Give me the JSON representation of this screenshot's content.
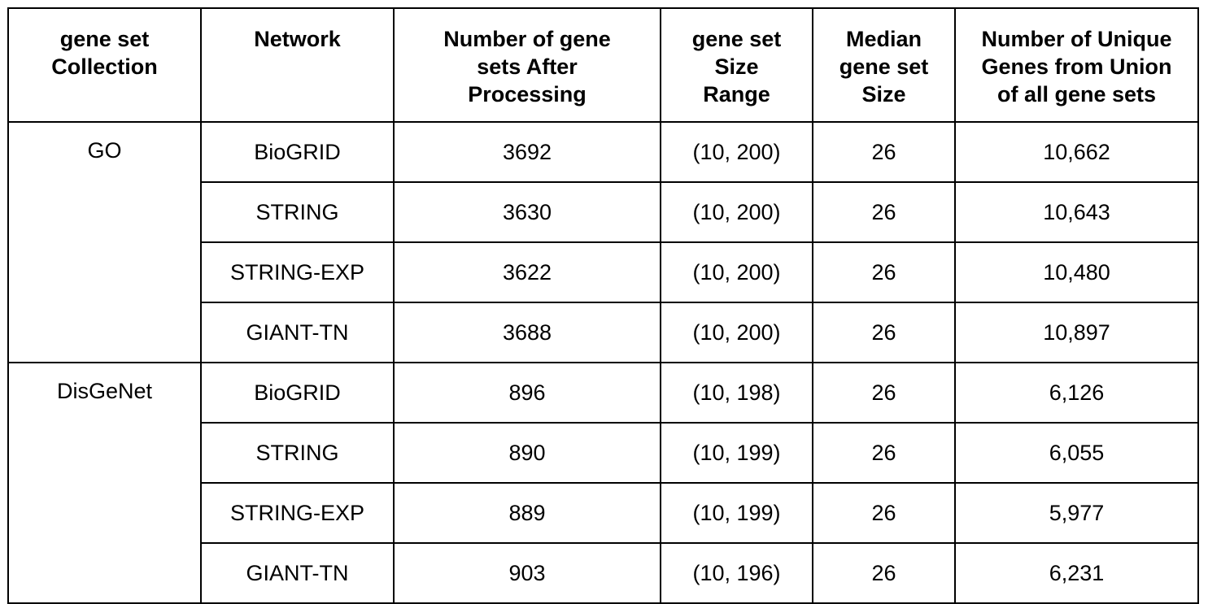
{
  "table": {
    "headers": [
      "gene set\nCollection",
      "Network",
      "Number of gene\nsets After\nProcessing",
      "gene set\nSize\nRange",
      "Median\ngene set\nSize",
      "Number of Unique\nGenes from Union\nof all gene sets"
    ],
    "groups": [
      {
        "collection": "GO",
        "rows": [
          {
            "network": "BioGRID",
            "num_sets": "3692",
            "size_range": "(10, 200)",
            "median": "26",
            "unique_genes": "10,662"
          },
          {
            "network": "STRING",
            "num_sets": "3630",
            "size_range": "(10, 200)",
            "median": "26",
            "unique_genes": "10,643"
          },
          {
            "network": "STRING-EXP",
            "num_sets": "3622",
            "size_range": "(10, 200)",
            "median": "26",
            "unique_genes": "10,480"
          },
          {
            "network": "GIANT-TN",
            "num_sets": "3688",
            "size_range": "(10, 200)",
            "median": "26",
            "unique_genes": "10,897"
          }
        ]
      },
      {
        "collection": "DisGeNet",
        "rows": [
          {
            "network": "BioGRID",
            "num_sets": "896",
            "size_range": "(10, 198)",
            "median": "26",
            "unique_genes": "6,126"
          },
          {
            "network": "STRING",
            "num_sets": "890",
            "size_range": "(10, 199)",
            "median": "26",
            "unique_genes": "6,055"
          },
          {
            "network": "STRING-EXP",
            "num_sets": "889",
            "size_range": "(10, 199)",
            "median": "26",
            "unique_genes": "5,977"
          },
          {
            "network": "GIANT-TN",
            "num_sets": "903",
            "size_range": "(10, 196)",
            "median": "26",
            "unique_genes": "6,231"
          }
        ]
      }
    ]
  }
}
